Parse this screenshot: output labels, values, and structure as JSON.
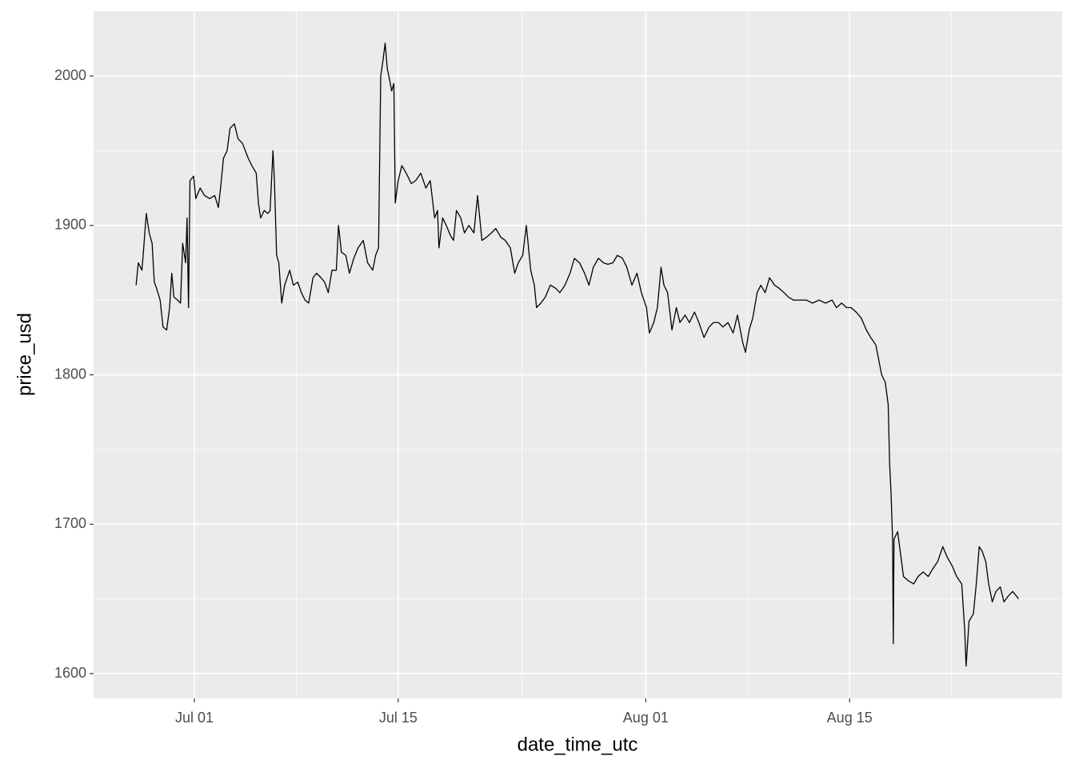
{
  "chart_data": {
    "type": "line",
    "xlabel": "date_time_utc",
    "ylabel": "price_usd",
    "color": "#000000",
    "panel_color": "#ebebeb",
    "grid": true,
    "xlim": [
      -6.92,
      59.6
    ],
    "ylim": [
      1583.4,
      2043.4
    ],
    "xticks": [
      {
        "value": 0,
        "label": "Jul 01"
      },
      {
        "value": 14,
        "label": "Jul 15"
      },
      {
        "value": 31,
        "label": "Aug 01"
      },
      {
        "value": 45,
        "label": "Aug 15"
      }
    ],
    "yticks": [
      1600,
      1700,
      1800,
      1900,
      2000
    ],
    "xminor": [
      7,
      22.5,
      38,
      52
    ],
    "yminor": [
      1650,
      1750,
      1850,
      1950
    ],
    "x": [
      -4.0,
      -3.85,
      -3.6,
      -3.5,
      -3.3,
      -3.1,
      -2.9,
      -2.75,
      -2.6,
      -2.35,
      -2.15,
      -1.9,
      -1.7,
      -1.55,
      -1.4,
      -1.15,
      -0.95,
      -0.8,
      -0.6,
      -0.5,
      -0.4,
      -0.3,
      -0.05,
      0.1,
      0.4,
      0.7,
      1.05,
      1.4,
      1.65,
      1.8,
      2.0,
      2.25,
      2.45,
      2.75,
      3.0,
      3.3,
      3.7,
      3.95,
      4.25,
      4.4,
      4.55,
      4.8,
      5.05,
      5.2,
      5.4,
      5.5,
      5.65,
      5.8,
      6.0,
      6.2,
      6.55,
      6.8,
      7.1,
      7.35,
      7.6,
      7.85,
      8.15,
      8.4,
      8.7,
      8.95,
      9.2,
      9.45,
      9.75,
      9.9,
      10.1,
      10.4,
      10.65,
      10.95,
      11.25,
      11.6,
      11.9,
      12.25,
      12.45,
      12.65,
      12.8,
      12.95,
      13.1,
      13.25,
      13.4,
      13.55,
      13.7,
      13.8,
      14.0,
      14.25,
      14.55,
      14.9,
      15.2,
      15.55,
      15.9,
      16.2,
      16.5,
      16.7,
      16.8,
      17.05,
      17.3,
      17.6,
      17.8,
      18.0,
      18.3,
      18.55,
      18.85,
      19.2,
      19.45,
      19.75,
      20.05,
      20.4,
      20.7,
      21.05,
      21.35,
      21.7,
      22.0,
      22.25,
      22.55,
      22.8,
      23.1,
      23.35,
      23.5,
      23.8,
      24.1,
      24.45,
      24.8,
      25.1,
      25.45,
      25.8,
      26.1,
      26.45,
      26.8,
      27.1,
      27.4,
      27.75,
      28.1,
      28.4,
      28.75,
      29.05,
      29.4,
      29.7,
      30.05,
      30.4,
      30.7,
      31.05,
      31.25,
      31.55,
      31.8,
      32.05,
      32.25,
      32.5,
      32.8,
      33.1,
      33.35,
      33.7,
      34.0,
      34.35,
      34.65,
      35.0,
      35.35,
      35.65,
      36.0,
      36.3,
      36.65,
      37.0,
      37.3,
      37.65,
      37.85,
      38.1,
      38.35,
      38.65,
      38.9,
      39.2,
      39.5,
      39.85,
      40.15,
      40.5,
      40.8,
      41.15,
      41.6,
      42.05,
      42.45,
      42.9,
      43.35,
      43.8,
      44.1,
      44.45,
      44.8,
      45.1,
      45.45,
      45.8,
      46.15,
      46.45,
      46.8,
      47.0,
      47.2,
      47.45,
      47.65,
      47.75,
      47.85,
      47.95,
      48.0,
      48.05,
      48.3,
      48.5,
      48.7,
      49.05,
      49.4,
      49.7,
      50.05,
      50.4,
      50.7,
      51.05,
      51.4,
      51.7,
      52.05,
      52.35,
      52.7,
      52.9,
      53.0,
      53.2,
      53.5,
      53.7,
      53.9,
      54.1,
      54.35,
      54.55,
      54.8,
      55.05,
      55.35,
      55.6,
      55.9,
      56.2,
      56.45,
      56.6
    ],
    "values": [
      1860,
      1875,
      1870,
      1882,
      1908,
      1895,
      1888,
      1862,
      1858,
      1850,
      1832,
      1830,
      1845,
      1868,
      1852,
      1850,
      1848,
      1888,
      1875,
      1905,
      1845,
      1930,
      1933,
      1918,
      1925,
      1920,
      1918,
      1920,
      1912,
      1925,
      1945,
      1950,
      1965,
      1968,
      1958,
      1955,
      1945,
      1940,
      1935,
      1915,
      1905,
      1910,
      1908,
      1910,
      1950,
      1930,
      1880,
      1875,
      1848,
      1860,
      1870,
      1860,
      1862,
      1855,
      1850,
      1848,
      1865,
      1868,
      1865,
      1862,
      1855,
      1870,
      1870,
      1900,
      1882,
      1880,
      1868,
      1878,
      1885,
      1890,
      1875,
      1870,
      1880,
      1885,
      2000,
      2010,
      2022,
      2005,
      1998,
      1990,
      1995,
      1915,
      1930,
      1940,
      1935,
      1928,
      1930,
      1935,
      1925,
      1930,
      1905,
      1910,
      1885,
      1905,
      1900,
      1893,
      1890,
      1910,
      1905,
      1895,
      1900,
      1895,
      1920,
      1890,
      1892,
      1895,
      1898,
      1892,
      1890,
      1885,
      1868,
      1875,
      1880,
      1900,
      1870,
      1860,
      1845,
      1848,
      1852,
      1860,
      1858,
      1855,
      1860,
      1868,
      1878,
      1875,
      1868,
      1860,
      1872,
      1878,
      1875,
      1874,
      1875,
      1880,
      1878,
      1872,
      1860,
      1868,
      1855,
      1845,
      1828,
      1835,
      1845,
      1872,
      1860,
      1855,
      1830,
      1845,
      1835,
      1840,
      1835,
      1842,
      1835,
      1825,
      1832,
      1835,
      1835,
      1832,
      1835,
      1828,
      1840,
      1822,
      1815,
      1830,
      1838,
      1855,
      1860,
      1855,
      1865,
      1860,
      1858,
      1855,
      1852,
      1850,
      1850,
      1850,
      1848,
      1850,
      1848,
      1850,
      1845,
      1848,
      1845,
      1845,
      1842,
      1838,
      1830,
      1825,
      1820,
      1810,
      1800,
      1795,
      1780,
      1740,
      1720,
      1690,
      1620,
      1690,
      1695,
      1680,
      1665,
      1662,
      1660,
      1665,
      1668,
      1665,
      1670,
      1675,
      1685,
      1678,
      1672,
      1665,
      1660,
      1630,
      1605,
      1635,
      1640,
      1660,
      1685,
      1682,
      1675,
      1660,
      1648,
      1655,
      1658,
      1648,
      1652,
      1655,
      1652,
      1650
    ]
  }
}
